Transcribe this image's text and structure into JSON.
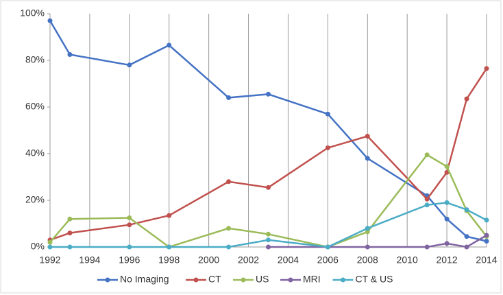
{
  "chart_data": {
    "type": "line",
    "x": [
      1992,
      1993,
      1996,
      1998,
      2001,
      2003,
      2006,
      2008,
      2011,
      2012,
      2013,
      2014
    ],
    "series": [
      {
        "name": "No Imaging",
        "color": "#4472c4",
        "values": [
          97,
          82.5,
          78,
          86.5,
          64,
          65.5,
          57,
          38,
          22,
          12,
          4.5,
          2.5
        ]
      },
      {
        "name": "CT",
        "color": "#c0504d",
        "values": [
          3,
          6,
          9.5,
          13.5,
          28,
          25.5,
          42.5,
          47.5,
          20.5,
          32,
          63.5,
          76.5
        ]
      },
      {
        "name": "US",
        "color": "#9bbb59",
        "values": [
          2,
          12,
          12.5,
          0,
          8,
          5.5,
          0,
          6.5,
          39.5,
          34.5,
          15.5,
          4.5
        ]
      },
      {
        "name": "MRI",
        "color": "#8064a2",
        "values": [
          null,
          null,
          null,
          null,
          null,
          0,
          0,
          0,
          0,
          1.5,
          0,
          5
        ]
      },
      {
        "name": "CT & US",
        "color": "#4bacc6",
        "values": [
          0,
          0,
          0,
          0,
          0,
          3,
          0,
          8,
          18,
          19,
          16,
          11.5
        ]
      }
    ],
    "xlim": [
      1992,
      2014
    ],
    "xticks": [
      1992,
      1994,
      1996,
      1998,
      2000,
      2002,
      2004,
      2006,
      2008,
      2010,
      2012,
      2014
    ],
    "ylim": [
      0,
      100
    ],
    "yticks": [
      {
        "value": 0,
        "label": "0%"
      },
      {
        "value": 20,
        "label": "20%"
      },
      {
        "value": 40,
        "label": "40%"
      },
      {
        "value": 60,
        "label": "60%"
      },
      {
        "value": 80,
        "label": "80%"
      },
      {
        "value": 100,
        "label": "100%"
      }
    ],
    "grid": true,
    "legend": "bottom"
  }
}
